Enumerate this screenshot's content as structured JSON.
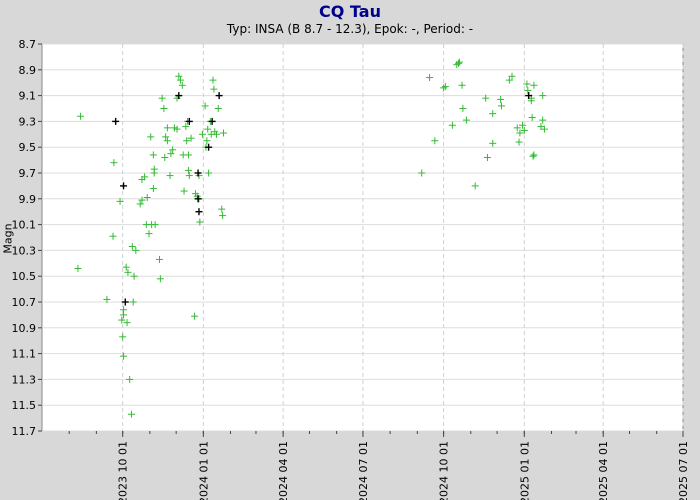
{
  "chart_data": {
    "type": "scatter",
    "title": "CQ Tau",
    "subtitle": "Typ: INSA (B 8.7 - 12.3), Epok: -, Period: -",
    "ylabel": "Magn",
    "xlabel": "",
    "ylim": [
      8.7,
      11.7
    ],
    "y_inverted": true,
    "y_ticks": [
      "8.7",
      "8.9",
      "9.1",
      "9.3",
      "9.5",
      "9.7",
      "9.9",
      "10.1",
      "10.3",
      "10.5",
      "10.7",
      "10.9",
      "11.1",
      "11.3",
      "11.5",
      "11.7"
    ],
    "xlim": [
      "2023-07-01",
      "2025-07-01"
    ],
    "x_ticks": [
      "2023 10 01",
      "2024 01 01",
      "2024 04 01",
      "2024 07 01",
      "2024 10 01",
      "2025 01 01",
      "2025 04 01",
      "2025 07 01"
    ],
    "grid": true,
    "series": [
      {
        "color": "#33bb33",
        "marker": "plus",
        "points": [
          [
            "2023-08-11",
            10.44
          ],
          [
            "2023-08-14",
            9.26
          ],
          [
            "2023-09-13",
            10.68
          ],
          [
            "2023-09-20",
            10.19
          ],
          [
            "2023-09-21",
            9.62
          ],
          [
            "2023-09-28",
            9.92
          ],
          [
            "2023-09-30",
            10.84
          ],
          [
            "2023-10-01",
            10.97
          ],
          [
            "2023-10-02",
            10.8
          ],
          [
            "2023-10-02",
            11.12
          ],
          [
            "2023-10-02",
            10.76
          ],
          [
            "2023-10-05",
            10.43
          ],
          [
            "2023-10-06",
            10.86
          ],
          [
            "2023-10-07",
            10.47
          ],
          [
            "2023-10-09",
            11.3
          ],
          [
            "2023-10-11",
            11.57
          ],
          [
            "2023-10-12",
            10.27
          ],
          [
            "2023-10-13",
            10.7
          ],
          [
            "2023-10-14",
            10.5
          ],
          [
            "2023-10-16",
            10.3
          ],
          [
            "2023-10-21",
            9.94
          ],
          [
            "2023-10-23",
            9.75
          ],
          [
            "2023-10-23",
            9.91
          ],
          [
            "2023-10-26",
            9.73
          ],
          [
            "2023-10-28",
            10.1
          ],
          [
            "2023-10-29",
            9.89
          ],
          [
            "2023-10-31",
            10.17
          ],
          [
            "2023-11-02",
            9.42
          ],
          [
            "2023-11-03",
            10.1
          ],
          [
            "2023-11-05",
            9.56
          ],
          [
            "2023-11-05",
            9.82
          ],
          [
            "2023-11-06",
            9.67
          ],
          [
            "2023-11-06",
            9.7
          ],
          [
            "2023-11-07",
            10.1
          ],
          [
            "2023-11-12",
            10.37
          ],
          [
            "2023-11-13",
            10.52
          ],
          [
            "2023-11-15",
            9.12
          ],
          [
            "2023-11-17",
            9.2
          ],
          [
            "2023-11-18",
            9.58
          ],
          [
            "2023-11-19",
            9.42
          ],
          [
            "2023-11-21",
            9.35
          ],
          [
            "2023-11-21",
            9.45
          ],
          [
            "2023-11-24",
            9.72
          ],
          [
            "2023-11-25",
            9.55
          ],
          [
            "2023-11-27",
            9.52
          ],
          [
            "2023-11-29",
            9.35
          ],
          [
            "2023-12-02",
            9.12
          ],
          [
            "2023-12-02",
            9.36
          ],
          [
            "2023-12-04",
            8.95
          ],
          [
            "2023-12-06",
            8.98
          ],
          [
            "2023-12-08",
            9.02
          ],
          [
            "2023-12-09",
            9.56
          ],
          [
            "2023-12-10",
            9.84
          ],
          [
            "2023-12-12",
            9.34
          ],
          [
            "2023-12-13",
            9.45
          ],
          [
            "2023-12-14",
            9.3
          ],
          [
            "2023-12-15",
            9.56
          ],
          [
            "2023-12-15",
            9.68
          ],
          [
            "2023-12-16",
            9.72
          ],
          [
            "2023-12-18",
            9.43
          ],
          [
            "2023-12-22",
            10.81
          ],
          [
            "2023-12-23",
            9.86
          ],
          [
            "2023-12-25",
            9.88
          ],
          [
            "2023-12-27",
            9.72
          ],
          [
            "2023-12-27",
            9.9
          ],
          [
            "2023-12-28",
            10.08
          ],
          [
            "2023-12-31",
            9.4
          ],
          [
            "2024-01-03",
            9.18
          ],
          [
            "2024-01-04",
            9.5
          ],
          [
            "2024-01-05",
            9.45
          ],
          [
            "2024-01-06",
            9.36
          ],
          [
            "2024-01-07",
            9.7
          ],
          [
            "2024-01-09",
            9.3
          ],
          [
            "2024-01-10",
            9.4
          ],
          [
            "2024-01-12",
            8.98
          ],
          [
            "2024-01-13",
            9.05
          ],
          [
            "2024-01-14",
            9.38
          ],
          [
            "2024-01-16",
            9.4
          ],
          [
            "2024-01-18",
            9.2
          ],
          [
            "2024-01-22",
            9.98
          ],
          [
            "2024-01-23",
            10.03
          ],
          [
            "2024-01-24",
            9.39
          ],
          [
            "2024-09-06",
            9.7
          ],
          [
            "2024-09-15",
            8.96
          ],
          [
            "2024-09-21",
            9.45
          ],
          [
            "2024-10-01",
            9.04
          ],
          [
            "2024-10-03",
            9.03
          ],
          [
            "2024-10-11",
            9.33
          ],
          [
            "2024-10-16",
            8.86
          ],
          [
            "2024-10-18",
            8.85
          ],
          [
            "2024-10-19",
            8.84
          ],
          [
            "2024-10-22",
            9.02
          ],
          [
            "2024-10-23",
            9.2
          ],
          [
            "2024-10-27",
            9.29
          ],
          [
            "2024-11-06",
            9.8
          ],
          [
            "2024-11-18",
            9.12
          ],
          [
            "2024-11-20",
            9.58
          ],
          [
            "2024-11-26",
            9.24
          ],
          [
            "2024-11-26",
            9.47
          ],
          [
            "2024-12-05",
            9.13
          ],
          [
            "2024-12-06",
            9.18
          ],
          [
            "2024-12-15",
            8.98
          ],
          [
            "2024-12-18",
            8.95
          ],
          [
            "2024-12-24",
            9.35
          ],
          [
            "2024-12-26",
            9.46
          ],
          [
            "2024-12-27",
            9.39
          ],
          [
            "2024-12-30",
            9.33
          ],
          [
            "2025-01-01",
            9.37
          ],
          [
            "2025-01-04",
            9.01
          ],
          [
            "2025-01-05",
            9.06
          ],
          [
            "2025-01-09",
            9.12
          ],
          [
            "2025-01-09",
            9.14
          ],
          [
            "2025-01-10",
            9.27
          ],
          [
            "2025-01-11",
            9.57
          ],
          [
            "2025-01-12",
            9.56
          ],
          [
            "2025-01-12",
            9.02
          ],
          [
            "2025-01-20",
            9.34
          ],
          [
            "2025-01-22",
            9.29
          ],
          [
            "2025-01-22",
            9.1
          ],
          [
            "2025-01-24",
            9.36
          ]
        ]
      },
      {
        "color": "#000000",
        "marker": "plus",
        "points": [
          [
            "2023-09-23",
            9.3
          ],
          [
            "2023-10-02",
            9.8
          ],
          [
            "2023-10-04",
            10.7
          ],
          [
            "2023-12-04",
            9.1
          ],
          [
            "2023-12-16",
            9.3
          ],
          [
            "2023-12-26",
            9.7
          ],
          [
            "2023-12-26",
            9.9
          ],
          [
            "2023-12-27",
            10.0
          ],
          [
            "2024-01-11",
            9.3
          ],
          [
            "2024-01-19",
            9.1
          ],
          [
            "2024-01-07",
            9.5
          ],
          [
            "2025-01-06",
            9.1
          ]
        ]
      }
    ]
  }
}
